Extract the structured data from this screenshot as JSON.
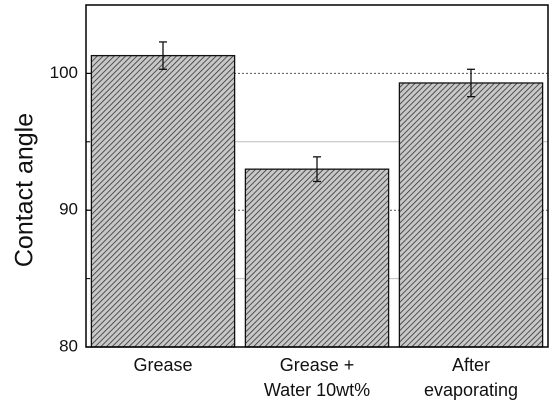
{
  "chart_data": {
    "type": "bar",
    "y_label": "Contact angle",
    "categories": [
      [
        "Grease"
      ],
      [
        "Grease +",
        "Water 10wt%"
      ],
      [
        "After",
        "evaporating"
      ]
    ],
    "values": [
      101.3,
      93.0,
      99.3
    ],
    "errors": [
      1.0,
      0.9,
      1.0
    ],
    "color": "#7a7a7a",
    "ylim": [
      80,
      105
    ],
    "yticks": [
      80,
      90,
      100
    ],
    "minor_yticks": [
      85,
      95
    ],
    "grid": true
  }
}
